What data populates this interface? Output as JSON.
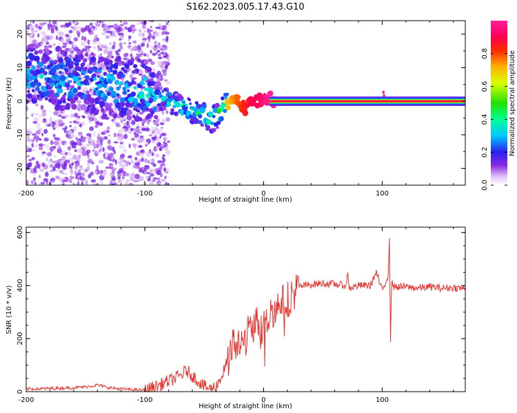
{
  "figure": {
    "title": "S162.2023.005.17.43.G10"
  },
  "chart_data": [
    {
      "type": "heatmap",
      "title": "S162.2023.005.17.43.G10",
      "xlabel": "Height of straight line (km)",
      "ylabel": "Frequency (Hz)",
      "xlim": [
        -200,
        170
      ],
      "ylim": [
        -25,
        24
      ],
      "x_ticks": [
        -200,
        -100,
        0,
        100
      ],
      "y_ticks": [
        -20,
        -10,
        0,
        10,
        20
      ],
      "colorbar": {
        "label": "Normalized spectral amplitude",
        "range": [
          0.0,
          1.0
        ],
        "ticks": [
          0.0,
          0.2,
          0.4,
          0.6,
          0.8
        ],
        "tick_labels": [
          "0.0",
          "0.2",
          "0.4",
          "0.6",
          "0.8"
        ],
        "colormap": "gist_ncar-like (white-purple-blue-cyan-green-yellow-red-pink)"
      },
      "ridge": {
        "description": "dominant spectral peak frequency vs height",
        "x": [
          -200,
          -180,
          -160,
          -140,
          -120,
          -100,
          -90,
          -80,
          -70,
          -60,
          -50,
          -45,
          -40,
          -35,
          -30,
          -25,
          -20,
          -15,
          -10,
          -5,
          0,
          5,
          10,
          20,
          50,
          100,
          101,
          102,
          150,
          170
        ],
        "y": [
          8,
          7,
          6,
          5,
          4,
          3,
          2,
          0,
          -2,
          -3,
          -4,
          -5.5,
          -5,
          -2,
          -1,
          1,
          -1,
          -2,
          0,
          0,
          1,
          1,
          0,
          0,
          0,
          0,
          2,
          0,
          0,
          0
        ],
        "amplitude": [
          0.35,
          0.35,
          0.35,
          0.35,
          0.35,
          0.4,
          0.35,
          0.4,
          0.45,
          0.45,
          0.45,
          0.45,
          0.5,
          0.6,
          0.7,
          0.75,
          0.8,
          0.85,
          0.9,
          0.9,
          0.95,
          1.0,
          1.0,
          1.0,
          1.0,
          1.0,
          1.0,
          1.0,
          1.0,
          1.0
        ]
      }
    },
    {
      "type": "line",
      "xlabel": "Height of straight line (km)",
      "ylabel": "SNR (10 * v/v)",
      "xlim": [
        -200,
        170
      ],
      "ylim": [
        0,
        620
      ],
      "x_ticks": [
        -200,
        -100,
        0,
        100
      ],
      "y_ticks": [
        0,
        200,
        400,
        600
      ],
      "color": "#e8312a",
      "series": [
        {
          "x": [
            -200,
            -180,
            -160,
            -150,
            -140,
            -130,
            -120,
            -110,
            -100,
            -90,
            -80,
            -70,
            -65,
            -60,
            -55,
            -50,
            -45,
            -40,
            -35,
            -30,
            -25,
            -20,
            -15,
            -10,
            -5,
            0,
            5,
            10,
            15,
            20,
            25,
            30,
            40,
            50,
            60,
            70,
            71,
            72,
            80,
            90,
            95,
            100,
            105,
            106,
            107,
            108,
            110,
            120,
            130,
            140,
            150,
            160,
            170
          ],
          "y": [
            10,
            12,
            15,
            18,
            25,
            15,
            10,
            8,
            5,
            20,
            40,
            60,
            80,
            60,
            40,
            20,
            10,
            20,
            60,
            120,
            180,
            170,
            200,
            250,
            260,
            250,
            290,
            320,
            330,
            350,
            370,
            395,
            405,
            408,
            405,
            400,
            460,
            390,
            400,
            400,
            450,
            380,
            440,
            580,
            200,
            420,
            395,
            395,
            390,
            395,
            390,
            392,
            388
          ]
        }
      ]
    }
  ]
}
